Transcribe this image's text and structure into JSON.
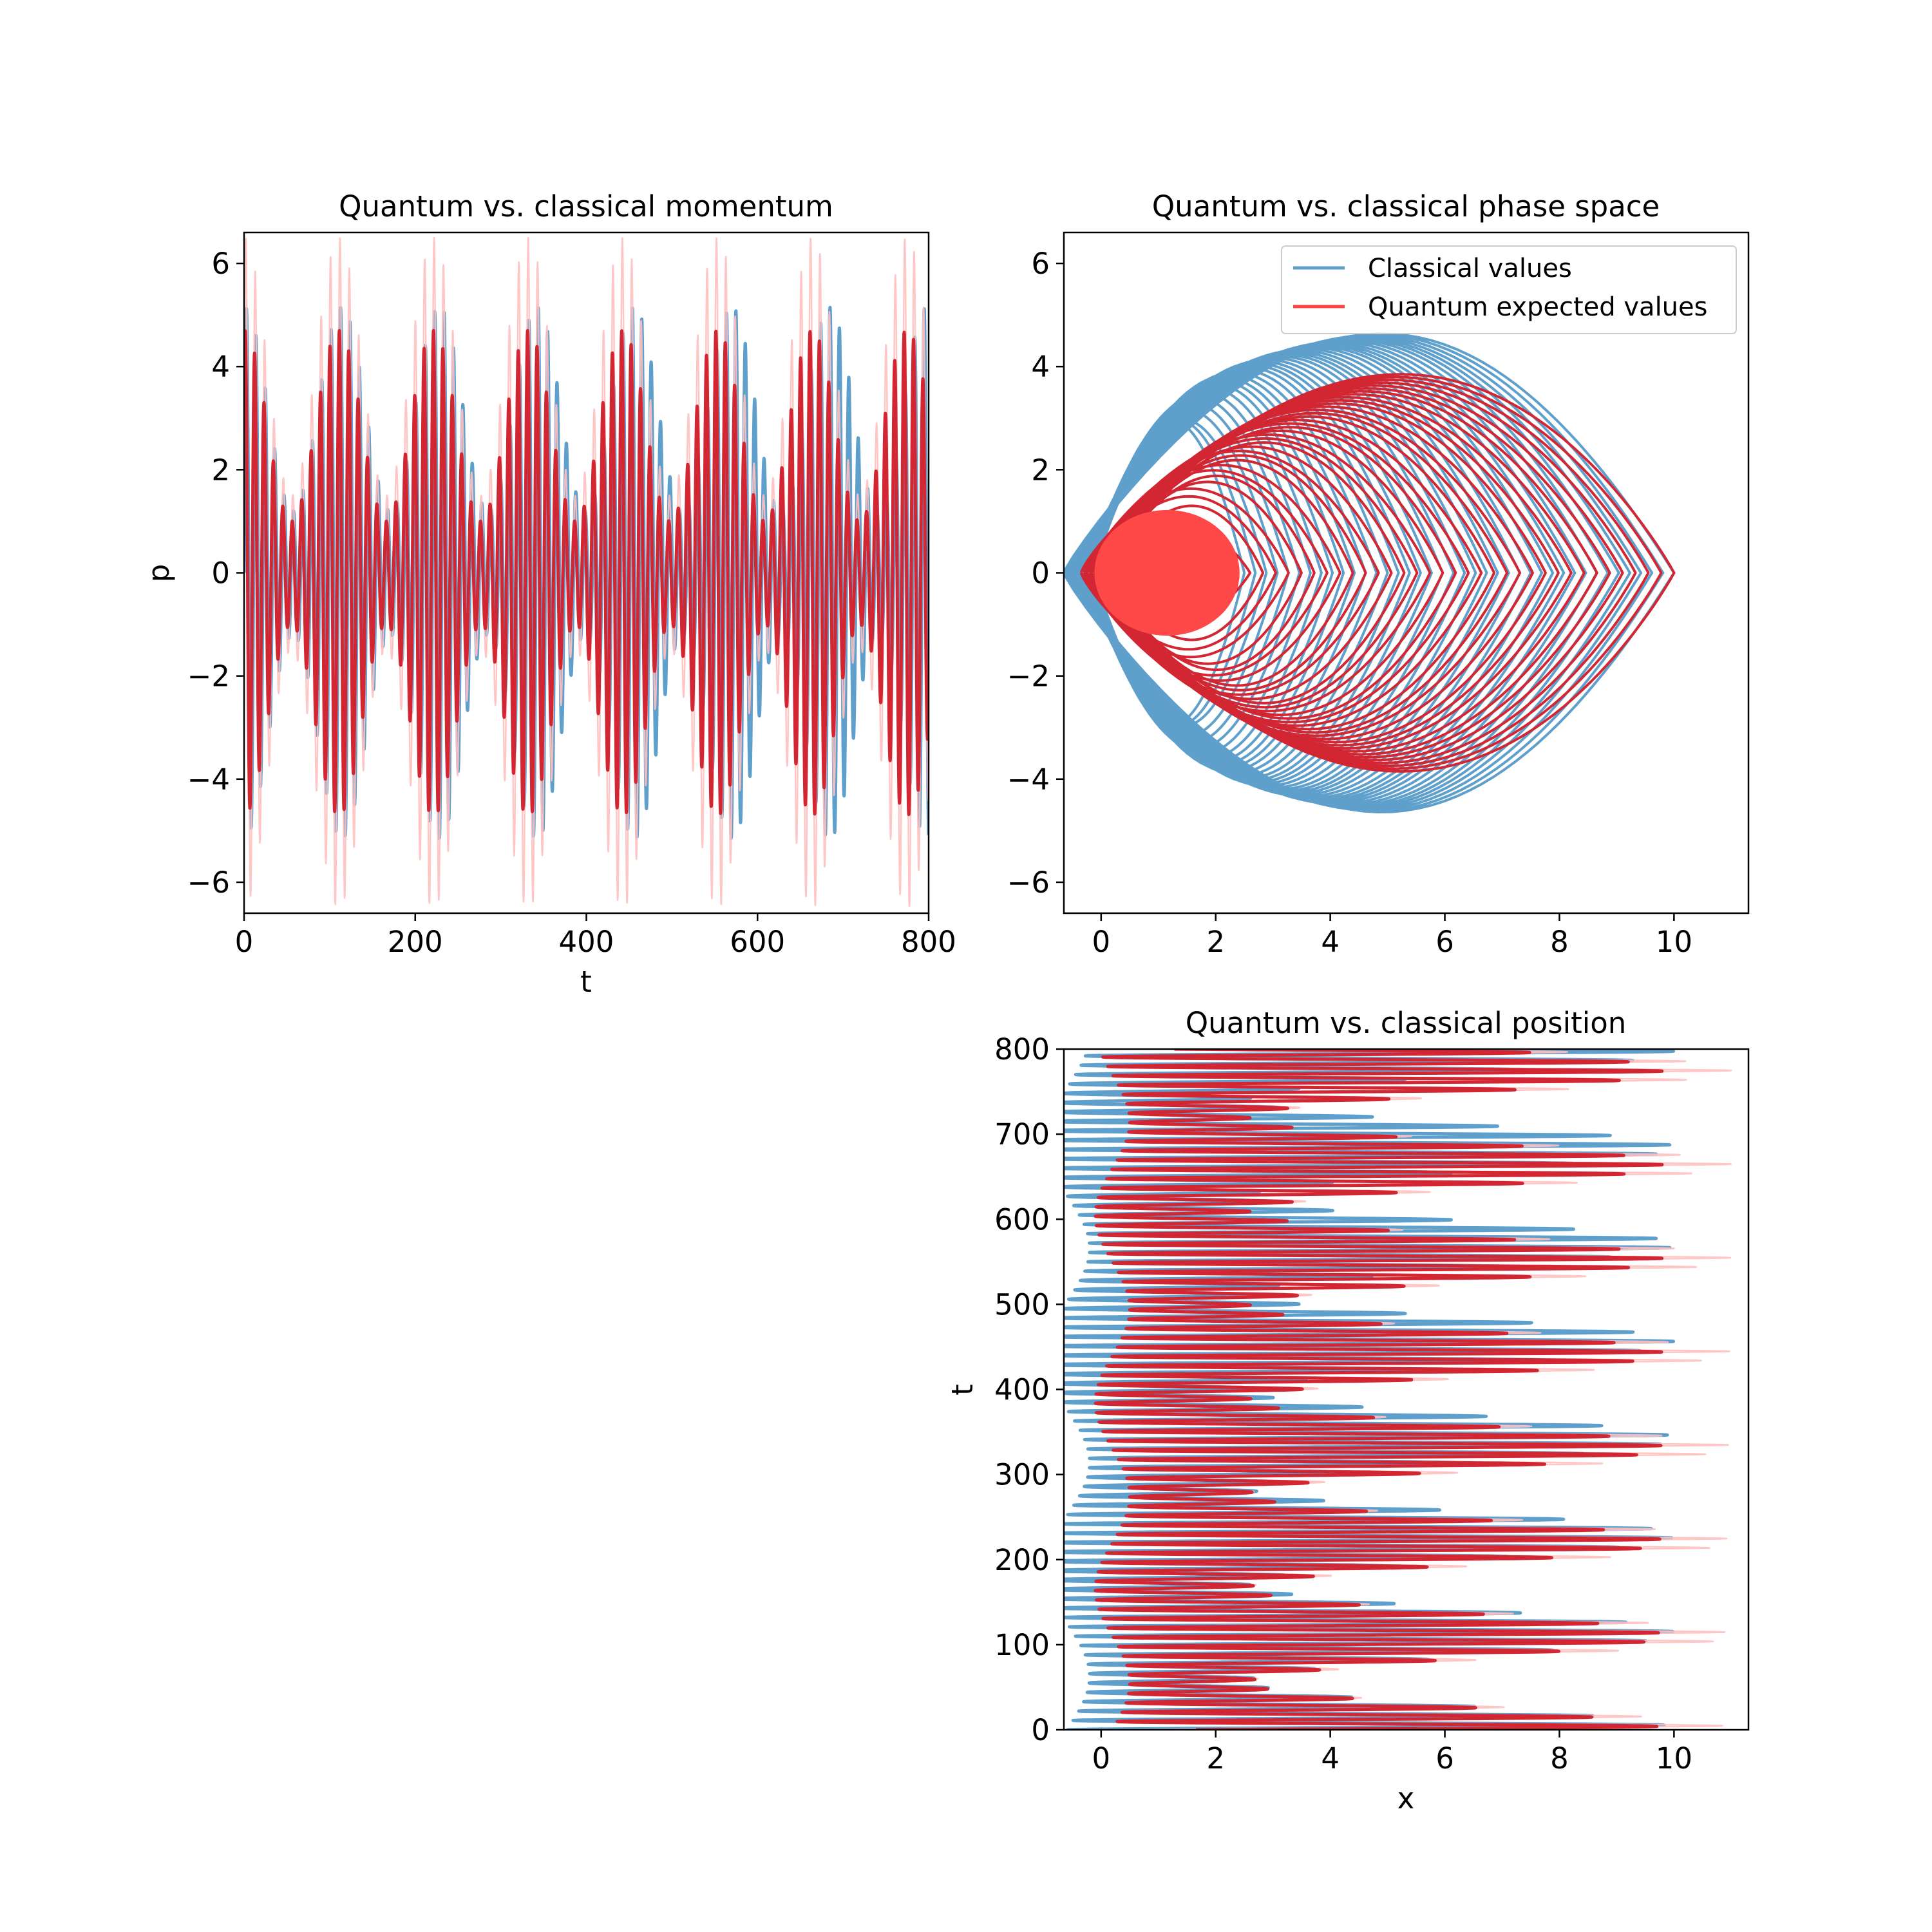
{
  "chart_data": [
    {
      "id": "momentum",
      "type": "line",
      "title": "Quantum vs. classical momentum",
      "xlabel": "t",
      "ylabel": "p",
      "xlim": [
        0,
        800
      ],
      "ylim": [
        -6.6,
        6.6
      ],
      "xticks": [
        0,
        200,
        400,
        600,
        800
      ],
      "yticks": [
        6,
        4,
        2,
        0,
        -2,
        -4,
        -6
      ],
      "tick_labels_x": [
        "0",
        "200",
        "400",
        "600",
        "800"
      ],
      "tick_labels_y": [
        "6",
        "4",
        "2",
        "0",
        "−2",
        "−4",
        "−6"
      ],
      "grid": false,
      "series": [
        {
          "role": "classical",
          "color": "#5f9fcc",
          "period": 11,
          "envelope_period": 114,
          "amplitude_max": 5.15,
          "amplitude_min": 1.2
        },
        {
          "role": "quantum_band",
          "color": "#ffc0c0",
          "period": 11,
          "envelope_period": 114,
          "amplitude_max": 6.5,
          "amplitude_min": 1.5
        },
        {
          "role": "quantum",
          "color": "#d32633",
          "period": 11,
          "envelope_period": 114,
          "amplitude_max": 4.7,
          "amplitude_min": 1.0
        }
      ]
    },
    {
      "id": "phase_space",
      "type": "line",
      "title": "Quantum vs. classical phase space",
      "xlabel": "",
      "ylabel": "",
      "xlim": [
        -0.65,
        11.3
      ],
      "ylim": [
        -6.6,
        6.6
      ],
      "xticks": [
        0,
        2,
        4,
        6,
        8,
        10
      ],
      "yticks": [
        6,
        4,
        2,
        0,
        -2,
        -4,
        -6
      ],
      "tick_labels_x": [
        "0",
        "2",
        "4",
        "6",
        "8",
        "10"
      ],
      "tick_labels_y": [
        "6",
        "4",
        "2",
        "0",
        "−2",
        "−4",
        "−6"
      ],
      "grid": false,
      "legend_position": "top-right",
      "legend": [
        {
          "label": "Classical values",
          "color": "#5f9fcc"
        },
        {
          "label": "Quantum expected values",
          "color": "#ff4444"
        }
      ],
      "series": [
        {
          "role": "classical",
          "color": "#5f9fcc",
          "x_min_start": 0,
          "x_max": 10,
          "p_max": 5.15
        },
        {
          "role": "quantum",
          "color": "#d32633",
          "x_max": 10,
          "p_max": 4.9
        },
        {
          "role": "quantum_core",
          "color": "#ff4848",
          "x_max": 2.4,
          "p_max": 1.2
        }
      ]
    },
    {
      "id": "position",
      "type": "line",
      "title": "Quantum vs. classical position",
      "xlabel": "x",
      "ylabel": "t",
      "xlim": [
        -0.65,
        11.3
      ],
      "ylim": [
        0,
        800
      ],
      "xticks": [
        0,
        2,
        4,
        6,
        8,
        10
      ],
      "yticks": [
        800,
        700,
        600,
        500,
        400,
        300,
        200,
        100,
        0
      ],
      "tick_labels_x": [
        "0",
        "2",
        "4",
        "6",
        "8",
        "10"
      ],
      "tick_labels_y": [
        "800",
        "700",
        "600",
        "500",
        "400",
        "300",
        "200",
        "100",
        "0"
      ],
      "grid": false,
      "series": [
        {
          "role": "classical",
          "color": "#5f9fcc",
          "period": 11,
          "envelope_period": 114,
          "x_max": 10
        },
        {
          "role": "quantum_band",
          "color": "#ffc0c0",
          "period": 11,
          "envelope_period": 114,
          "x_max": 11
        },
        {
          "role": "quantum",
          "color": "#d32633",
          "period": 11,
          "envelope_period": 114,
          "x_max": 9.8
        }
      ]
    }
  ]
}
